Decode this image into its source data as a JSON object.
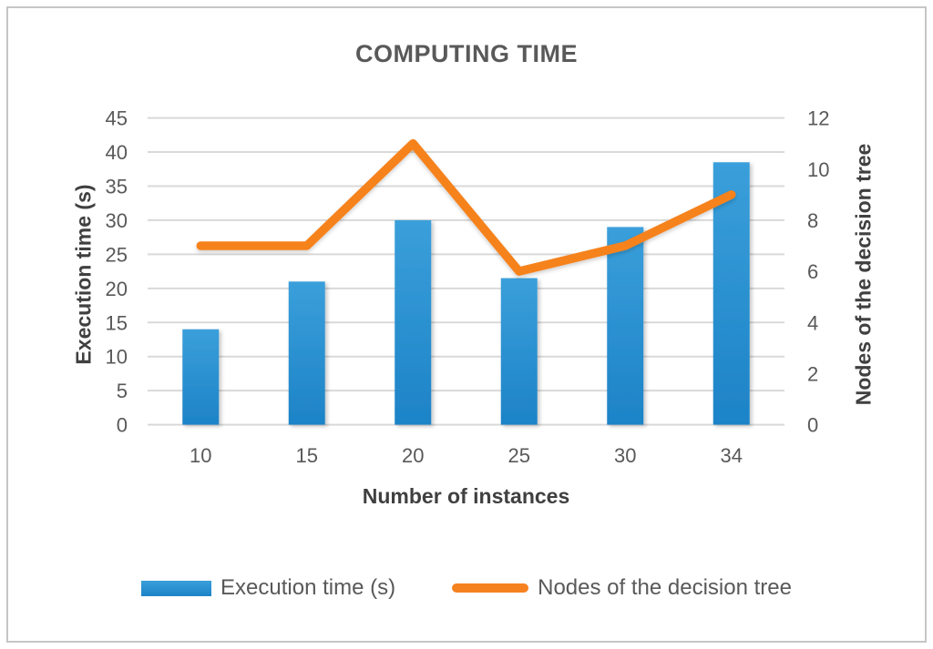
{
  "chart_data": {
    "type": "bar",
    "title": "COMPUTING TIME",
    "categories": [
      "10",
      "15",
      "20",
      "25",
      "30",
      "34"
    ],
    "series": [
      {
        "name": "Execution time (s)",
        "type": "bar",
        "axis": "left",
        "values": [
          14,
          21,
          30,
          21.5,
          29,
          38.5
        ]
      },
      {
        "name": "Nodes of the decision tree",
        "type": "line",
        "axis": "right",
        "values": [
          7,
          7,
          11,
          6,
          7,
          9
        ]
      }
    ],
    "xlabel": "Number of instances",
    "ylabel_left": "Execution time (s)",
    "ylabel_right": "Nodes of the decision tree",
    "yticks_left": [
      0,
      5,
      10,
      15,
      20,
      25,
      30,
      35,
      40,
      45
    ],
    "yticks_right": [
      0,
      2,
      4,
      6,
      8,
      10,
      12
    ],
    "ylim_left": [
      0,
      45
    ],
    "ylim_right": [
      0,
      12
    ],
    "grid": true,
    "legend_position": "bottom"
  },
  "colors": {
    "bar_top": "#3a9fda",
    "bar_bottom": "#1d83c7",
    "line": "#f6821f",
    "grid": "#d9d9d9",
    "tick_text": "#595959",
    "axis_title_text": "#404040",
    "title_text": "#595959",
    "frame_border": "#c6c6c6"
  }
}
